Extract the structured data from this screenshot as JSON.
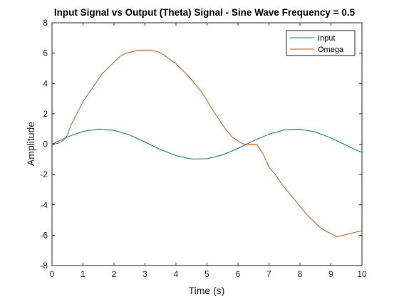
{
  "chart_data": {
    "type": "line",
    "title": "Input Signal vs Output (Theta) Signal - Sine Wave Frequency = 0.5",
    "xlabel": "Time (s)",
    "ylabel": "Amplitude",
    "xlim": [
      0,
      10
    ],
    "ylim": [
      -8,
      8
    ],
    "xticks": [
      0,
      1,
      2,
      3,
      4,
      5,
      6,
      7,
      8,
      9,
      10
    ],
    "yticks": [
      -8,
      -6,
      -4,
      -2,
      0,
      2,
      4,
      6,
      8
    ],
    "grid": false,
    "legend_position": "top-right",
    "series": [
      {
        "name": "Input",
        "color": "#0072BD",
        "x": [
          0,
          0.5,
          1,
          1.5,
          2,
          2.5,
          3,
          3.14,
          3.5,
          4,
          4.5,
          5,
          5.5,
          6,
          6.28,
          6.5,
          7,
          7.5,
          8,
          8.5,
          9,
          9.42,
          9.8,
          10
        ],
        "y": [
          0,
          0.48,
          0.84,
          1.0,
          0.91,
          0.6,
          0.14,
          0,
          -0.35,
          -0.76,
          -0.98,
          -0.96,
          -0.71,
          -0.28,
          0,
          0.22,
          0.66,
          0.95,
          0.99,
          0.8,
          0.41,
          0,
          -0.37,
          -0.54
        ]
      },
      {
        "name": "Omega",
        "color": "#D95319",
        "x": [
          0,
          0.2,
          0.4,
          0.5,
          0.6,
          0.8,
          1,
          1.2,
          1.4,
          1.6,
          1.8,
          2,
          2.2,
          2.4,
          2.6,
          2.8,
          3,
          3.2,
          3.4,
          3.6,
          3.8,
          4,
          4.2,
          4.4,
          4.6,
          4.8,
          5,
          5.2,
          5.4,
          5.6,
          5.8,
          6,
          6.2,
          6.4,
          6.6,
          6.8,
          7,
          7.2,
          7.4,
          7.6,
          7.8,
          8,
          8.2,
          8.4,
          8.6,
          8.8,
          9,
          9.2,
          9.4,
          9.6,
          9.8,
          10
        ],
        "y": [
          0,
          0.05,
          0.3,
          0.6,
          1.2,
          2.0,
          2.8,
          3.4,
          4.0,
          4.6,
          5.0,
          5.4,
          5.8,
          6.0,
          6.1,
          6.2,
          6.2,
          6.2,
          6.1,
          5.9,
          5.6,
          5.3,
          4.9,
          4.5,
          4.0,
          3.5,
          2.9,
          2.2,
          1.6,
          1.0,
          0.5,
          0.2,
          0.0,
          0.0,
          0.0,
          -0.6,
          -1.5,
          -2.0,
          -2.6,
          -3.1,
          -3.6,
          -4.1,
          -4.6,
          -5.0,
          -5.4,
          -5.7,
          -5.9,
          -6.1,
          -6.0,
          -5.9,
          -5.8,
          -5.7
        ]
      }
    ]
  }
}
